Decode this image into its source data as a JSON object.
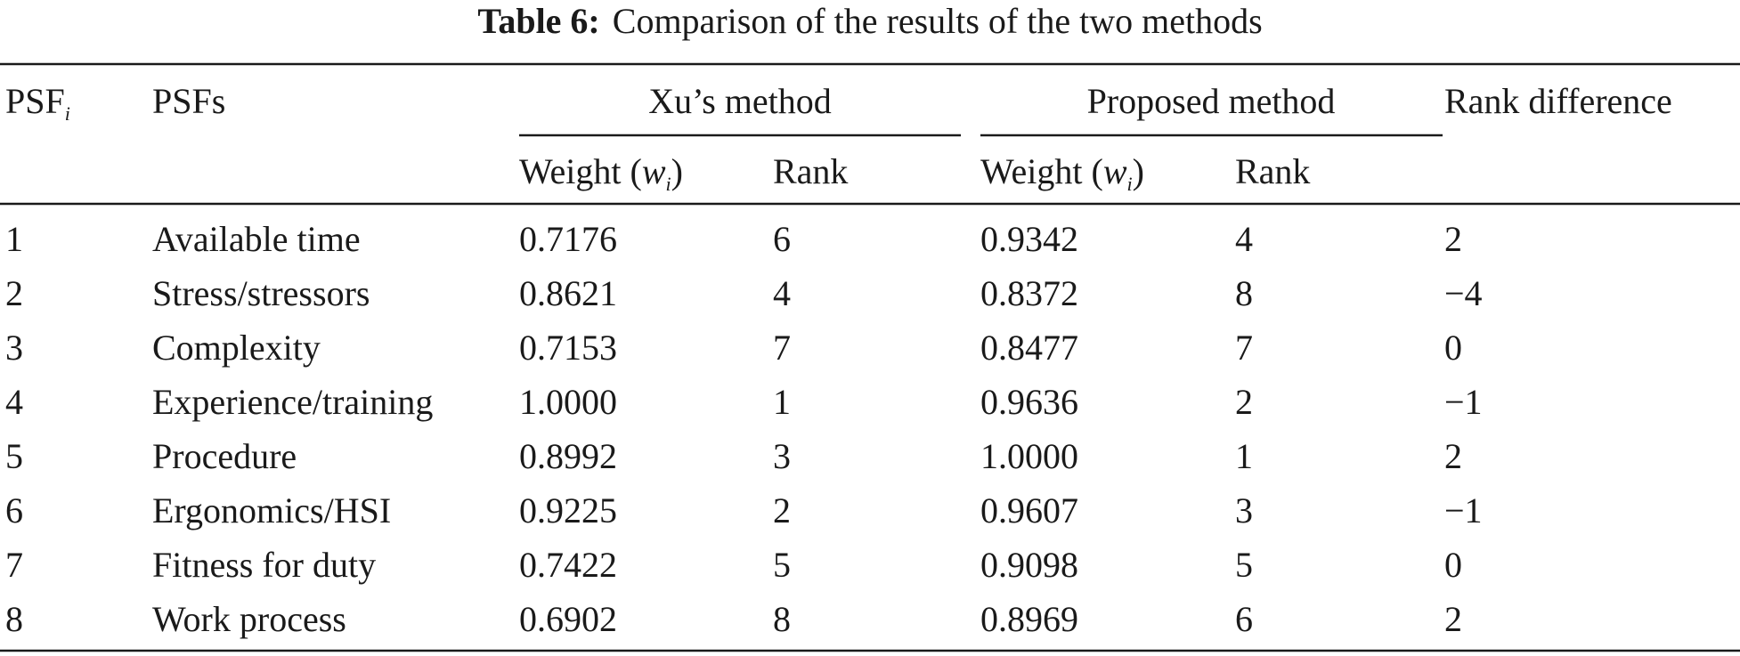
{
  "title": {
    "label": "Table 6:",
    "text": "Comparison of the results of the two methods"
  },
  "table": {
    "header": {
      "psf": {
        "text": "PSF",
        "sub": "i"
      },
      "psfs": "PSFs",
      "xu": "Xu’s method",
      "proposed": "Proposed method",
      "rank_difference": "Rank difference",
      "weight": {
        "text": "Weight (",
        "var": "w",
        "sub": "i",
        "close": ")"
      },
      "rank": "Rank"
    },
    "rows": [
      [
        "1",
        "Available time",
        "0.7176",
        "6",
        "0.9342",
        "4",
        "2"
      ],
      [
        "2",
        "Stress/stressors",
        "0.8621",
        "4",
        "0.8372",
        "8",
        "−4"
      ],
      [
        "3",
        "Complexity",
        "0.7153",
        "7",
        "0.8477",
        "7",
        "0"
      ],
      [
        "4",
        "Experience/training",
        "1.0000",
        "1",
        "0.9636",
        "2",
        "−1"
      ],
      [
        "5",
        "Procedure",
        "0.8992",
        "3",
        "1.0000",
        "1",
        "2"
      ],
      [
        "6",
        "Ergonomics/HSI",
        "0.9225",
        "2",
        "0.9607",
        "3",
        "−1"
      ],
      [
        "7",
        "Fitness for duty",
        "0.7422",
        "5",
        "0.9098",
        "5",
        "0"
      ],
      [
        "8",
        "Work process",
        "0.6902",
        "8",
        "0.8969",
        "6",
        "2"
      ]
    ]
  }
}
